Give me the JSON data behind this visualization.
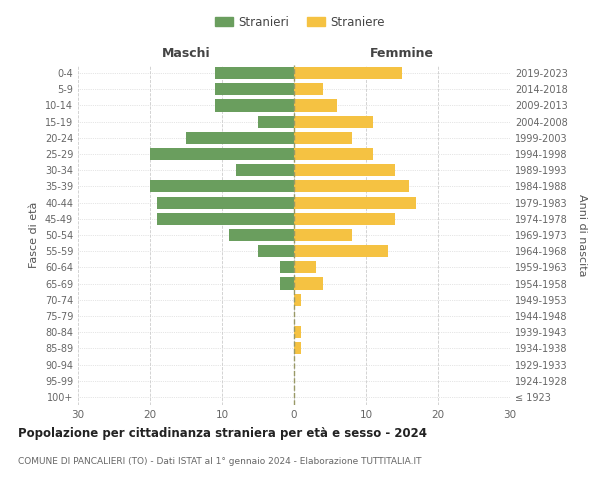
{
  "age_groups": [
    "100+",
    "95-99",
    "90-94",
    "85-89",
    "80-84",
    "75-79",
    "70-74",
    "65-69",
    "60-64",
    "55-59",
    "50-54",
    "45-49",
    "40-44",
    "35-39",
    "30-34",
    "25-29",
    "20-24",
    "15-19",
    "10-14",
    "5-9",
    "0-4"
  ],
  "birth_years": [
    "≤ 1923",
    "1924-1928",
    "1929-1933",
    "1934-1938",
    "1939-1943",
    "1944-1948",
    "1949-1953",
    "1954-1958",
    "1959-1963",
    "1964-1968",
    "1969-1973",
    "1974-1978",
    "1979-1983",
    "1984-1988",
    "1989-1993",
    "1994-1998",
    "1999-2003",
    "2004-2008",
    "2009-2013",
    "2014-2018",
    "2019-2023"
  ],
  "males": [
    0,
    0,
    0,
    0,
    0,
    0,
    0,
    2,
    2,
    5,
    9,
    19,
    19,
    20,
    8,
    20,
    15,
    5,
    11,
    11,
    11
  ],
  "females": [
    0,
    0,
    0,
    1,
    1,
    0,
    1,
    4,
    3,
    13,
    8,
    14,
    17,
    16,
    14,
    11,
    8,
    11,
    6,
    4,
    15
  ],
  "male_color": "#6a9e5e",
  "female_color": "#f5c242",
  "title": "Popolazione per cittadinanza straniera per età e sesso - 2024",
  "subtitle": "COMUNE DI PANCALIERI (TO) - Dati ISTAT al 1° gennaio 2024 - Elaborazione TUTTITALIA.IT",
  "xlabel_left": "Maschi",
  "xlabel_right": "Femmine",
  "ylabel_left": "Fasce di età",
  "ylabel_right": "Anni di nascita",
  "legend_male": "Stranieri",
  "legend_female": "Straniere",
  "xlim": 30,
  "background_color": "#ffffff",
  "grid_color": "#cccccc"
}
